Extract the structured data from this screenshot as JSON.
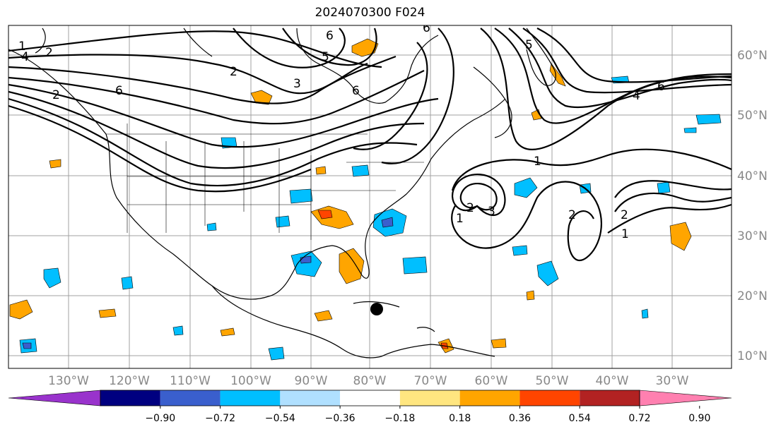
{
  "title": "2024070300 F024",
  "map": {
    "longitude_labels": [
      "130°W",
      "120°W",
      "110°W",
      "100°W",
      "90°W",
      "80°W",
      "70°W",
      "60°W",
      "50°W",
      "40°W",
      "30°W"
    ],
    "latitude_labels": [
      "60°N",
      "50°N",
      "40°N",
      "30°N",
      "20°N",
      "10°N"
    ],
    "grid_color": "#a0a0a0",
    "contour_labels": [
      "1",
      "2",
      "4",
      "2",
      "6",
      "6",
      "5",
      "2",
      "3",
      "6",
      "5",
      "6",
      "4",
      "6",
      "1",
      "2",
      "2",
      "1",
      "2",
      "3",
      "1"
    ]
  },
  "colorbar": {
    "colors": [
      "#9933cc",
      "#000080",
      "#3a5fcd",
      "#00bfff",
      "#b0e0ff",
      "#ffffff",
      "#ffe680",
      "#ffa500",
      "#ff4500",
      "#b22222",
      "#ff80b0"
    ],
    "tick_labels": [
      "−0.90",
      "−0.72",
      "−0.54",
      "−0.36",
      "−0.18",
      "0.18",
      "0.36",
      "0.54",
      "0.72",
      "0.90"
    ]
  }
}
